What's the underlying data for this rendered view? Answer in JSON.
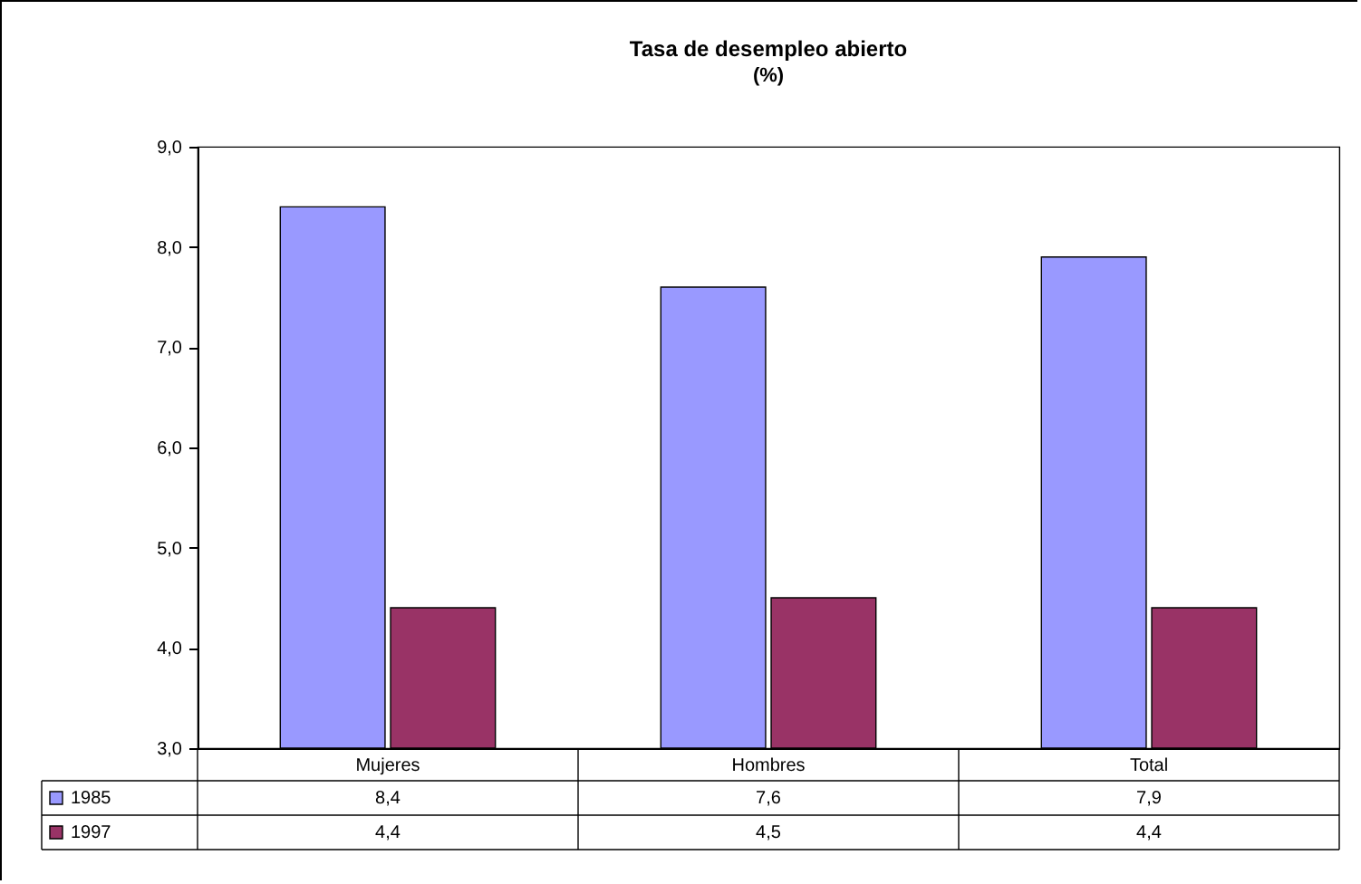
{
  "chart_data": {
    "type": "bar",
    "title": "Tasa de desempleo abierto",
    "subtitle": "(%)",
    "categories": [
      "Mujeres",
      "Hombres",
      "Total"
    ],
    "series": [
      {
        "name": "1985",
        "color": "#9999ff",
        "values": [
          8.4,
          7.6,
          7.9
        ],
        "value_labels": [
          "8,4",
          "7,6",
          "7,9"
        ]
      },
      {
        "name": "1997",
        "color": "#993366",
        "values": [
          4.4,
          4.5,
          4.4
        ],
        "value_labels": [
          "4,4",
          "4,5",
          "4,4"
        ]
      }
    ],
    "ylim": [
      3,
      9
    ],
    "yticks": [
      {
        "value": 3,
        "label": "3,0"
      },
      {
        "value": 4,
        "label": "4,0"
      },
      {
        "value": 5,
        "label": "5,0"
      },
      {
        "value": 6,
        "label": "6,0"
      },
      {
        "value": 7,
        "label": "7,0"
      },
      {
        "value": 8,
        "label": "8,0"
      },
      {
        "value": 9,
        "label": "9,0"
      }
    ],
    "legend": "bottom"
  }
}
